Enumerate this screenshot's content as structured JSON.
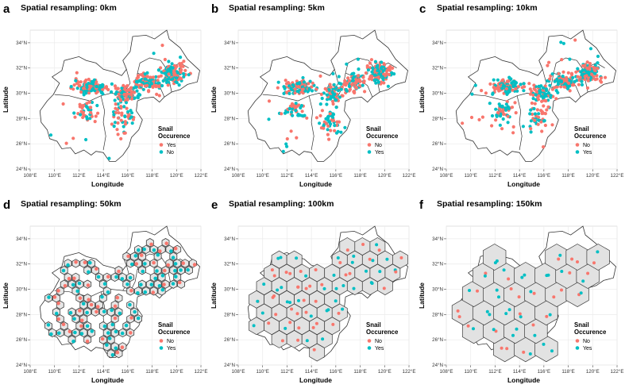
{
  "chart_data": [
    {
      "panel_letter": "a",
      "title": "Spatial resampling: 0km",
      "type": "scatter",
      "xlabel": "Longitude",
      "ylabel": "Latitude",
      "x_ticks": [
        "108°E",
        "110°E",
        "112°E",
        "114°E",
        "116°E",
        "118°E",
        "120°E",
        "122°E"
      ],
      "y_ticks": [
        "24°N",
        "26°N",
        "28°N",
        "30°N",
        "32°N",
        "34°N"
      ],
      "xlim": [
        108,
        122
      ],
      "ylim": [
        24,
        35
      ],
      "legend": {
        "title_line1": "Snail",
        "title_line2": "Occurence",
        "items": [
          {
            "label": "Yes",
            "color": "#F8766D"
          },
          {
            "label": "No",
            "color": "#00BFC4"
          }
        ]
      },
      "hexagons": false,
      "grid": true,
      "legend_position": "bottom-right"
    },
    {
      "panel_letter": "b",
      "title": "Spatial resampling: 5km",
      "type": "scatter",
      "xlabel": "Longitude",
      "ylabel": "Latitude",
      "x_ticks": [
        "108°E",
        "110°E",
        "112°E",
        "114°E",
        "116°E",
        "118°E",
        "120°E",
        "122°E"
      ],
      "y_ticks": [
        "24°N",
        "26°N",
        "28°N",
        "30°N",
        "32°N",
        "34°N"
      ],
      "xlim": [
        108,
        122
      ],
      "ylim": [
        24,
        35
      ],
      "legend": {
        "title_line1": "Snail",
        "title_line2": "Occurence",
        "items": [
          {
            "label": "No",
            "color": "#F8766D"
          },
          {
            "label": "Yes",
            "color": "#00BFC4"
          }
        ]
      },
      "hexagons": false,
      "grid": true,
      "legend_position": "bottom-right"
    },
    {
      "panel_letter": "c",
      "title": "Spatial resampling: 10km",
      "type": "scatter",
      "xlabel": "Longitude",
      "ylabel": "Latitude",
      "x_ticks": [
        "108°E",
        "110°E",
        "112°E",
        "114°E",
        "116°E",
        "118°E",
        "120°E",
        "122°E"
      ],
      "y_ticks": [
        "24°N",
        "26°N",
        "28°N",
        "30°N",
        "32°N",
        "34°N"
      ],
      "xlim": [
        108,
        122
      ],
      "ylim": [
        24,
        35
      ],
      "legend": {
        "title_line1": "Snail",
        "title_line2": "Occurence",
        "items": [
          {
            "label": "No",
            "color": "#F8766D"
          },
          {
            "label": "Yes",
            "color": "#00BFC4"
          }
        ]
      },
      "hexagons": false,
      "grid": true,
      "legend_position": "bottom-right"
    },
    {
      "panel_letter": "d",
      "title": "Spatial resampling: 50km",
      "type": "scatter",
      "xlabel": "Longitude",
      "ylabel": "Latitude",
      "x_ticks": [
        "108°E",
        "110°E",
        "112°E",
        "114°E",
        "116°E",
        "118°E",
        "120°E",
        "122°E"
      ],
      "y_ticks": [
        "24°N",
        "26°N",
        "28°N",
        "30°N",
        "32°N",
        "34°N"
      ],
      "xlim": [
        108,
        122
      ],
      "ylim": [
        24,
        35
      ],
      "legend": {
        "title_line1": "Snail",
        "title_line2": "Occurence",
        "items": [
          {
            "label": "No",
            "color": "#F8766D"
          },
          {
            "label": "Yes",
            "color": "#00BFC4"
          }
        ]
      },
      "hexagons": true,
      "grid": true,
      "legend_position": "bottom-right"
    },
    {
      "panel_letter": "e",
      "title": "Spatial resampling: 100km",
      "type": "scatter",
      "xlabel": "Longitude",
      "ylabel": "Latitude",
      "x_ticks": [
        "108°E",
        "110°E",
        "112°E",
        "114°E",
        "116°E",
        "118°E",
        "120°E",
        "122°E"
      ],
      "y_ticks": [
        "24°N",
        "26°N",
        "28°N",
        "30°N",
        "32°N",
        "34°N"
      ],
      "xlim": [
        108,
        122
      ],
      "ylim": [
        24,
        35
      ],
      "legend": {
        "title_line1": "Snail",
        "title_line2": "Occurence",
        "items": [
          {
            "label": "No",
            "color": "#F8766D"
          },
          {
            "label": "Yes",
            "color": "#00BFC4"
          }
        ]
      },
      "hexagons": true,
      "grid": true,
      "legend_position": "bottom-right"
    },
    {
      "panel_letter": "f",
      "title": "Spatial resampling: 150km",
      "type": "scatter",
      "xlabel": "Longitude",
      "ylabel": "Latitude",
      "x_ticks": [
        "108°E",
        "110°E",
        "112°E",
        "114°E",
        "116°E",
        "118°E",
        "120°E",
        "122°E"
      ],
      "y_ticks": [
        "24°N",
        "26°N",
        "28°N",
        "30°N",
        "32°N",
        "34°N"
      ],
      "xlim": [
        108,
        122
      ],
      "ylim": [
        24,
        35
      ],
      "legend": {
        "title_line1": "Snail",
        "title_line2": "Occurence",
        "items": [
          {
            "label": "No",
            "color": "#F8766D"
          },
          {
            "label": "Yes",
            "color": "#00BFC4"
          }
        ]
      },
      "hexagons": true,
      "grid": true,
      "legend_position": "bottom-right"
    }
  ]
}
